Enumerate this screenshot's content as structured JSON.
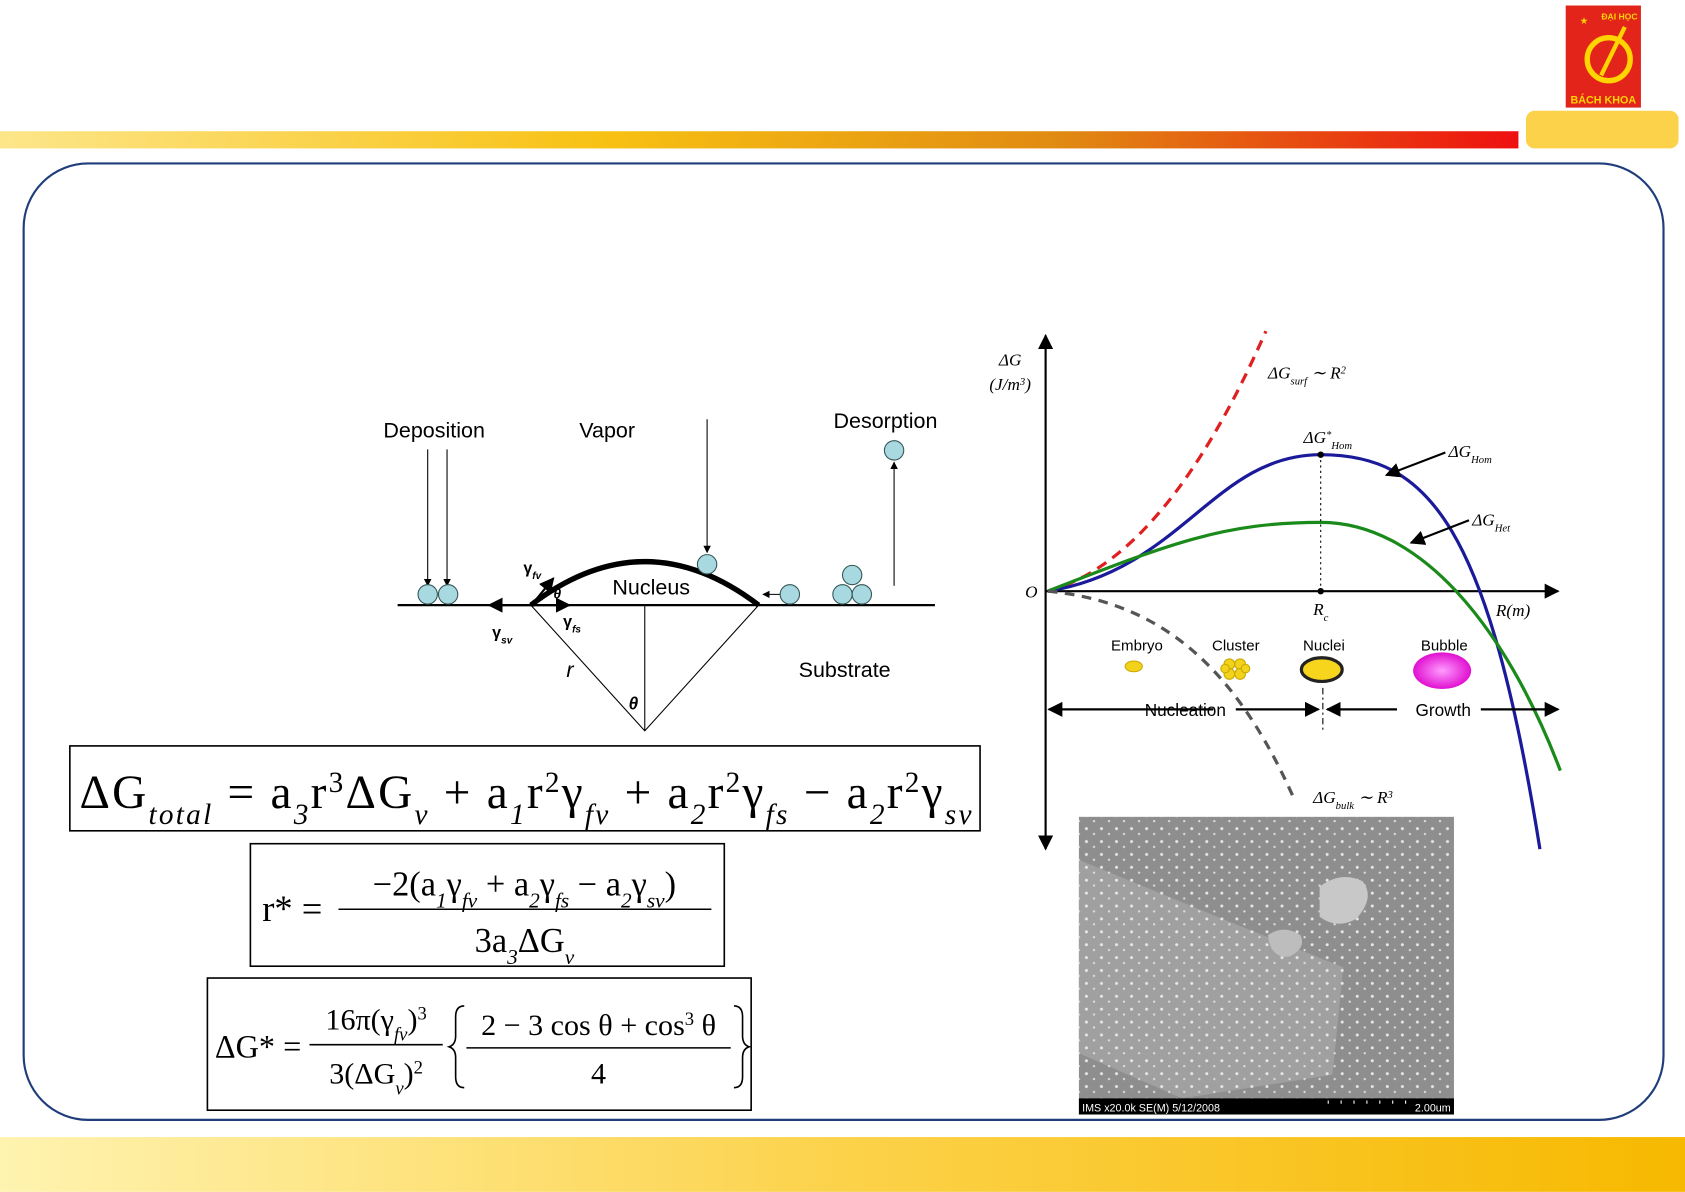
{
  "logo": {
    "top": "ĐẠI HỌC",
    "bottom": "BÁCH KHOA"
  },
  "diagram": {
    "deposition": "Deposition",
    "vapor": "Vapor",
    "desorption": "Desorption",
    "nucleus": "Nucleus",
    "substrate": "Substrate",
    "r": "r",
    "theta_bottom": "θ",
    "theta_contact": "θ",
    "gamma_fv": [
      [
        "γ",
        ""
      ],
      [
        "fv",
        "sub"
      ]
    ],
    "gamma_fs": [
      [
        "γ",
        ""
      ],
      [
        "fs",
        "sub"
      ]
    ],
    "gamma_sv": [
      [
        "γ",
        ""
      ],
      [
        "sv",
        "sub"
      ]
    ]
  },
  "equations": {
    "total": [
      [
        "ΔG",
        ""
      ],
      [
        "total",
        "sub"
      ],
      [
        " = a",
        ""
      ],
      [
        "3",
        "sub"
      ],
      [
        "r",
        ""
      ],
      [
        "3",
        "sup"
      ],
      [
        "ΔG",
        ""
      ],
      [
        "v",
        "sub"
      ],
      [
        " + a",
        ""
      ],
      [
        "1",
        "sub"
      ],
      [
        "r",
        ""
      ],
      [
        "2",
        "sup"
      ],
      [
        "γ",
        ""
      ],
      [
        "fv",
        "sub"
      ],
      [
        " + a",
        ""
      ],
      [
        "2",
        "sub"
      ],
      [
        "r",
        ""
      ],
      [
        "2",
        "sup"
      ],
      [
        "γ",
        ""
      ],
      [
        "fs",
        "sub"
      ],
      [
        " − a",
        ""
      ],
      [
        "2",
        "sub"
      ],
      [
        "r",
        ""
      ],
      [
        "2",
        "sup"
      ],
      [
        "γ",
        ""
      ],
      [
        "sv",
        "sub"
      ]
    ],
    "rstar": {
      "lhs": [
        [
          "r* =",
          ""
        ]
      ],
      "num": [
        [
          "−2(a",
          ""
        ],
        [
          "1",
          "sub"
        ],
        [
          "γ",
          ""
        ],
        [
          "fv",
          "sub"
        ],
        [
          " + a",
          ""
        ],
        [
          "2",
          "sub"
        ],
        [
          "γ",
          ""
        ],
        [
          "fs",
          "sub"
        ],
        [
          " − a",
          ""
        ],
        [
          "2",
          "sub"
        ],
        [
          "γ",
          ""
        ],
        [
          "sv",
          "sub"
        ],
        [
          ")",
          ""
        ]
      ],
      "den": [
        [
          "3a",
          ""
        ],
        [
          "3",
          "sub"
        ],
        [
          "ΔG",
          ""
        ],
        [
          "v",
          "sub"
        ]
      ]
    },
    "gstar": {
      "lhs": [
        [
          "ΔG* =",
          ""
        ]
      ],
      "num1": [
        [
          "16π(γ",
          ""
        ],
        [
          "fv",
          "sub"
        ],
        [
          ")",
          ""
        ],
        [
          "3",
          "sup"
        ]
      ],
      "den1": [
        [
          "3(ΔG",
          ""
        ],
        [
          "v",
          "sub"
        ],
        [
          ")",
          ""
        ],
        [
          "2",
          "sup"
        ]
      ],
      "num2": [
        [
          "2 − 3 cos θ + cos",
          ""
        ],
        [
          "3",
          "sup"
        ],
        [
          " θ",
          ""
        ]
      ],
      "den2": [
        [
          "4",
          ""
        ]
      ]
    }
  },
  "graph": {
    "y_axis": [
      [
        "ΔG",
        ""
      ]
    ],
    "y_unit": [
      [
        "(J/m",
        ""
      ],
      [
        "3",
        "sup"
      ],
      [
        ")",
        ""
      ]
    ],
    "surf": [
      [
        "ΔG",
        ""
      ],
      [
        "surf",
        "sub"
      ],
      [
        " ∼ R",
        ""
      ],
      [
        "2",
        "sup"
      ]
    ],
    "hom_star": [
      [
        "ΔG",
        ""
      ],
      [
        "*",
        "sup"
      ],
      [
        "Hom",
        "sub"
      ]
    ],
    "hom": [
      [
        "ΔG",
        ""
      ],
      [
        "Hom",
        "sub"
      ]
    ],
    "het": [
      [
        "ΔG",
        ""
      ],
      [
        "Het",
        "sub"
      ]
    ],
    "origin": [
      [
        "O",
        ""
      ]
    ],
    "rc": [
      [
        "R",
        ""
      ],
      [
        "c",
        "sub"
      ]
    ],
    "x_axis": [
      [
        "R(m)",
        ""
      ]
    ],
    "bulk": [
      [
        "ΔG",
        ""
      ],
      [
        "bulk",
        "sub"
      ],
      [
        " ∼ R",
        ""
      ],
      [
        "3",
        "sup"
      ]
    ],
    "embryo": "Embryo",
    "cluster": "Cluster",
    "nuclei": "Nuclei",
    "bubble": "Bubble",
    "nucleation": "Nucleation",
    "growth": "Growth"
  },
  "sem": {
    "caption": "IMS x20.0k SE(M) 5/12/2008",
    "scale": "2.00um"
  }
}
